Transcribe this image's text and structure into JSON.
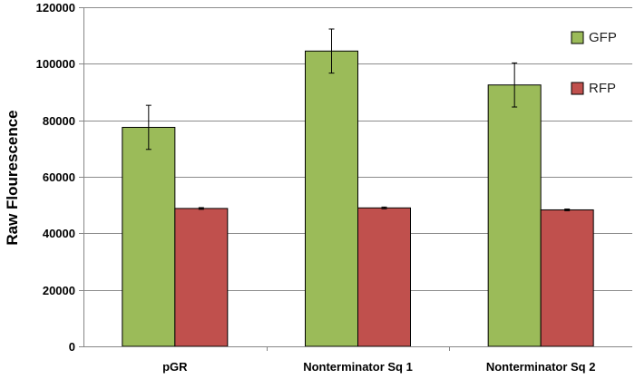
{
  "chart_data": {
    "type": "bar",
    "title": "",
    "xlabel": "",
    "ylabel": "Raw Flourescence",
    "ylim": [
      0,
      120000
    ],
    "yticks": [
      0,
      20000,
      40000,
      60000,
      80000,
      100000,
      120000
    ],
    "ytick_labels": [
      "0",
      "20000",
      "40000",
      "60000",
      "80000",
      "100000",
      "120000"
    ],
    "grid": true,
    "legend_position": "right",
    "categories": [
      "pGR",
      "Nonterminator Sq 1",
      "Nonterminator Sq 2"
    ],
    "series": [
      {
        "name": "GFP",
        "color": "#9BBB59",
        "values": [
          77500,
          104500,
          92500
        ],
        "errors": [
          7800,
          7800,
          7800
        ]
      },
      {
        "name": "RFP",
        "color": "#C0504D",
        "values": [
          48800,
          49000,
          48300
        ],
        "errors": [
          300,
          300,
          300
        ]
      }
    ]
  }
}
